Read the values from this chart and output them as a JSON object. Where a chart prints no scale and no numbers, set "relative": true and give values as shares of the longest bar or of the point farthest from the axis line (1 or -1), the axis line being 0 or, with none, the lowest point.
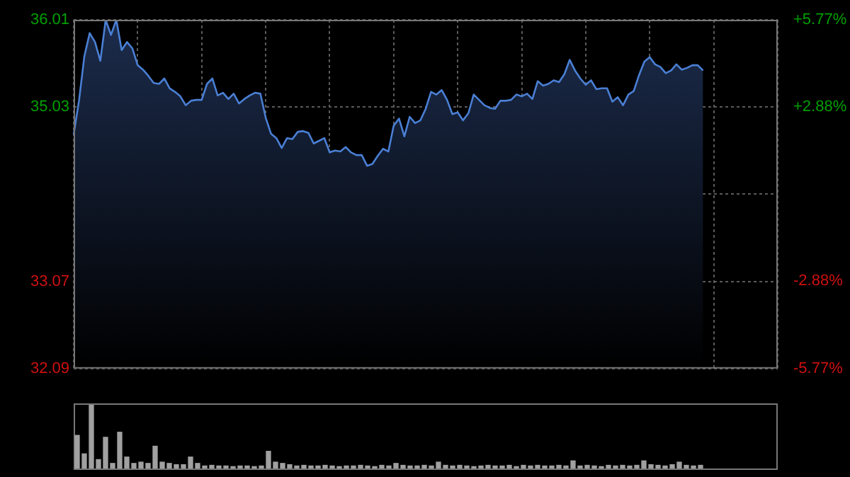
{
  "chart_data": [
    {
      "type": "area",
      "color": "#4a7fd4",
      "grid": true,
      "tick_labels": "y",
      "categories": [
        null,
        null,
        null,
        null,
        null,
        null,
        null,
        null,
        null,
        null,
        null,
        null,
        null,
        null,
        null,
        null,
        null,
        null,
        null,
        null,
        null,
        null,
        null,
        null,
        null,
        null,
        null,
        null,
        null,
        null,
        null,
        null,
        null,
        null,
        null,
        null,
        null,
        null,
        null,
        null,
        null,
        null,
        null,
        null,
        null,
        null,
        null,
        null,
        null,
        null,
        null,
        null,
        null,
        null,
        null,
        null,
        null,
        null,
        null,
        null,
        null,
        null,
        null,
        null,
        null,
        null,
        null,
        null,
        null,
        null,
        null,
        null,
        null,
        null,
        null,
        null,
        null,
        null,
        null,
        null,
        null,
        null,
        null,
        null,
        null,
        null,
        null,
        null,
        null,
        null,
        null,
        null,
        null,
        null,
        null,
        null,
        null,
        null,
        null,
        null,
        null,
        null,
        null,
        null,
        null,
        null,
        null,
        null,
        null,
        null,
        null,
        null,
        null,
        null,
        null,
        null,
        null,
        null,
        null,
        null,
        null,
        null,
        null,
        null,
        null,
        null,
        null,
        null,
        null,
        null,
        null,
        null,
        null
      ],
      "ylim": [
        32.09,
        36.01
      ],
      "yticks": [
        32.09,
        33.07,
        {
          "value": 34.05,
          "label": null
        },
        35.03,
        36.01
      ],
      "y2lim": [
        -5.77,
        5.77
      ],
      "y2ticks": [
        {
          "value": -5.77,
          "label": "-5.77%"
        },
        {
          "value": -2.88,
          "label": "-2.88%"
        },
        {
          "value": 0,
          "label": null
        },
        {
          "value": 2.88,
          "label": "+2.88%"
        },
        {
          "value": 5.77,
          "label": "+5.77%"
        }
      ],
      "values": [
        34.72,
        35.1,
        35.6,
        35.86,
        35.76,
        35.55,
        36.01,
        35.84,
        36.01,
        35.67,
        35.76,
        35.69,
        35.5,
        35.45,
        35.38,
        35.3,
        35.29,
        35.35,
        35.24,
        35.2,
        35.15,
        35.05,
        35.1,
        35.11,
        35.11,
        35.29,
        35.35,
        35.16,
        35.19,
        35.12,
        35.18,
        35.07,
        35.12,
        35.16,
        35.19,
        35.18,
        34.91,
        34.73,
        34.68,
        34.57,
        34.68,
        34.67,
        34.75,
        34.76,
        34.74,
        34.62,
        34.65,
        34.68,
        34.52,
        34.54,
        34.53,
        34.58,
        34.52,
        34.49,
        34.49,
        34.37,
        34.39,
        34.48,
        34.56,
        34.53,
        34.82,
        34.9,
        34.7,
        34.92,
        34.85,
        34.88,
        35.01,
        35.2,
        35.17,
        35.22,
        35.11,
        34.95,
        34.97,
        34.88,
        34.96,
        35.17,
        35.11,
        35.05,
        35.02,
        35.01,
        35.1,
        35.1,
        35.11,
        35.17,
        35.15,
        35.18,
        35.12,
        35.32,
        35.27,
        35.29,
        35.33,
        35.31,
        35.4,
        35.56,
        35.44,
        35.35,
        35.28,
        35.33,
        35.23,
        35.24,
        35.24,
        35.09,
        35.14,
        35.05,
        35.17,
        35.21,
        35.39,
        35.54,
        35.59,
        35.51,
        35.48,
        35.41,
        35.44,
        35.51,
        35.45,
        35.47,
        35.5,
        35.5,
        35.44,
        null,
        null,
        null,
        null,
        null,
        null,
        null,
        null,
        null,
        null,
        null,
        null,
        null,
        null
      ]
    },
    {
      "type": "bar",
      "relative": true,
      "color": "#a0a0a0",
      "categories": [
        null,
        null,
        null,
        null,
        null,
        null,
        null,
        null,
        null,
        null,
        null,
        null,
        null,
        null,
        null,
        null,
        null,
        null,
        null,
        null,
        null,
        null,
        null,
        null,
        null,
        null,
        null,
        null,
        null,
        null,
        null,
        null,
        null,
        null,
        null,
        null,
        null,
        null,
        null,
        null,
        null,
        null,
        null,
        null,
        null,
        null,
        null,
        null,
        null,
        null,
        null,
        null,
        null,
        null,
        null,
        null,
        null,
        null,
        null,
        null,
        null,
        null,
        null,
        null,
        null,
        null,
        null,
        null,
        null,
        null,
        null,
        null,
        null,
        null,
        null,
        null,
        null,
        null,
        null,
        null,
        null,
        null,
        null,
        null,
        null,
        null,
        null,
        null,
        null
      ],
      "values": [
        0.52,
        0.23,
        1,
        0.14,
        0.49,
        0.08,
        0.57,
        0.18,
        0.08,
        0.1,
        0.08,
        0.35,
        0.1,
        0.08,
        0.06,
        0.06,
        0.18,
        0.08,
        0.04,
        0.05,
        0.04,
        0.04,
        0.03,
        0.04,
        0.04,
        0.03,
        0.04,
        0.27,
        0.1,
        0.08,
        0.06,
        0.04,
        0.05,
        0.04,
        0.04,
        0.05,
        0.04,
        0.03,
        0.04,
        0.04,
        0.05,
        0.04,
        0.03,
        0.05,
        0.04,
        0.08,
        0.05,
        0.04,
        0.04,
        0.05,
        0.04,
        0.1,
        0.05,
        0.04,
        0.05,
        0.04,
        0.03,
        0.04,
        0.05,
        0.04,
        0.04,
        0.05,
        0.03,
        0.05,
        0.04,
        0.05,
        0.04,
        0.04,
        0.05,
        0.04,
        0.12,
        0.04,
        0.05,
        0.04,
        0.03,
        0.05,
        0.04,
        0.05,
        0.04,
        0.05,
        0.12,
        0.06,
        0.05,
        0.04,
        0.06,
        0.1,
        0.05,
        0.04,
        0.05
      ]
    }
  ]
}
